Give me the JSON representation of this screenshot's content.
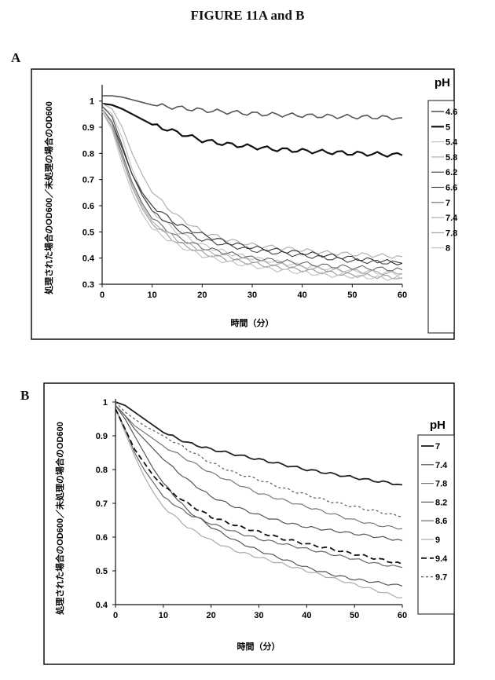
{
  "figure_title": "FIGURE 11A and B",
  "chart_data": [
    {
      "panel": "A",
      "type": "line",
      "xlabel": "時間（分）",
      "ylabel": "処理された場合のOD600／未処理の場合のOD600",
      "xlim": [
        0,
        60
      ],
      "ylim": [
        0.3,
        1.05
      ],
      "xticks": [
        "0",
        "10",
        "20",
        "30",
        "40",
        "50",
        "60"
      ],
      "yticks": [
        "0.3",
        "0.4",
        "0.5",
        "0.6",
        "0.7",
        "0.8",
        "0.9",
        "1"
      ],
      "legend_title": "pH",
      "legend_position": "right",
      "grid": false,
      "x": [
        0,
        2,
        4,
        6,
        8,
        10,
        15,
        20,
        25,
        30,
        35,
        40,
        45,
        50,
        55,
        60
      ],
      "series": [
        {
          "name": "4.6",
          "color": "#555555",
          "width": 1.6,
          "dash": "",
          "values": [
            1.02,
            1.02,
            1.015,
            1.005,
            0.995,
            0.985,
            0.975,
            0.965,
            0.958,
            0.952,
            0.948,
            0.945,
            0.942,
            0.94,
            0.938,
            0.936
          ]
        },
        {
          "name": "5",
          "color": "#111111",
          "width": 2.2,
          "dash": "",
          "values": [
            0.99,
            0.985,
            0.97,
            0.95,
            0.93,
            0.91,
            0.88,
            0.85,
            0.835,
            0.825,
            0.815,
            0.81,
            0.805,
            0.8,
            0.797,
            0.793
          ]
        },
        {
          "name": "5.4",
          "color": "#c4c4c4",
          "width": 1.2,
          "dash": "",
          "values": [
            0.98,
            0.95,
            0.86,
            0.74,
            0.65,
            0.58,
            0.5,
            0.45,
            0.42,
            0.4,
            0.385,
            0.37,
            0.36,
            0.35,
            0.345,
            0.34
          ]
        },
        {
          "name": "5.8",
          "color": "#b0b0b0",
          "width": 1.2,
          "dash": "",
          "values": [
            0.99,
            0.97,
            0.9,
            0.8,
            0.72,
            0.65,
            0.56,
            0.5,
            0.47,
            0.45,
            0.44,
            0.43,
            0.42,
            0.415,
            0.41,
            0.405
          ]
        },
        {
          "name": "6.2",
          "color": "#404040",
          "width": 1.1,
          "dash": "",
          "values": [
            0.98,
            0.94,
            0.83,
            0.72,
            0.64,
            0.58,
            0.51,
            0.47,
            0.45,
            0.43,
            0.42,
            0.41,
            0.4,
            0.39,
            0.385,
            0.38
          ]
        },
        {
          "name": "6.6",
          "color": "#303030",
          "width": 1.1,
          "dash": "",
          "values": [
            0.97,
            0.92,
            0.82,
            0.72,
            0.65,
            0.6,
            0.53,
            0.49,
            0.46,
            0.44,
            0.43,
            0.42,
            0.41,
            0.4,
            0.39,
            0.38
          ]
        },
        {
          "name": "7",
          "color": "#666666",
          "width": 1.1,
          "dash": "",
          "values": [
            0.97,
            0.92,
            0.8,
            0.69,
            0.61,
            0.55,
            0.48,
            0.44,
            0.42,
            0.4,
            0.39,
            0.38,
            0.37,
            0.365,
            0.36,
            0.355
          ]
        },
        {
          "name": "7.4",
          "color": "#a8a8a8",
          "width": 1.1,
          "dash": "",
          "values": [
            0.97,
            0.91,
            0.79,
            0.68,
            0.6,
            0.54,
            0.47,
            0.43,
            0.405,
            0.39,
            0.375,
            0.365,
            0.355,
            0.35,
            0.345,
            0.34
          ]
        },
        {
          "name": "7.8",
          "color": "#999999",
          "width": 1.1,
          "dash": "",
          "values": [
            0.96,
            0.9,
            0.78,
            0.67,
            0.59,
            0.53,
            0.46,
            0.42,
            0.395,
            0.38,
            0.365,
            0.355,
            0.345,
            0.335,
            0.33,
            0.325
          ]
        },
        {
          "name": "8",
          "color": "#bdbdbd",
          "width": 1.1,
          "dash": "",
          "values": [
            0.96,
            0.89,
            0.76,
            0.65,
            0.57,
            0.51,
            0.45,
            0.41,
            0.385,
            0.37,
            0.355,
            0.345,
            0.335,
            0.33,
            0.325,
            0.32
          ]
        }
      ]
    },
    {
      "panel": "B",
      "type": "line",
      "xlabel": "時間（分）",
      "ylabel": "処理された場合のOD600／未処理の場合のOD600",
      "xlim": [
        0,
        60
      ],
      "ylim": [
        0.4,
        1.0
      ],
      "xticks": [
        "0",
        "10",
        "20",
        "30",
        "40",
        "50",
        "60"
      ],
      "yticks": [
        "0.4",
        "0.5",
        "0.6",
        "0.7",
        "0.8",
        "0.9",
        "1"
      ],
      "legend_title": "pH",
      "legend_position": "right",
      "grid": false,
      "x": [
        0,
        2,
        4,
        6,
        8,
        10,
        15,
        20,
        25,
        30,
        35,
        40,
        45,
        50,
        55,
        60
      ],
      "series": [
        {
          "name": "7",
          "color": "#222222",
          "width": 1.8,
          "dash": "",
          "values": [
            1.0,
            0.99,
            0.97,
            0.95,
            0.93,
            0.91,
            0.88,
            0.86,
            0.845,
            0.83,
            0.815,
            0.8,
            0.788,
            0.776,
            0.765,
            0.755
          ]
        },
        {
          "name": "7.4",
          "color": "#555555",
          "width": 1.2,
          "dash": "",
          "values": [
            0.99,
            0.95,
            0.9,
            0.85,
            0.8,
            0.76,
            0.68,
            0.63,
            0.59,
            0.56,
            0.535,
            0.51,
            0.49,
            0.475,
            0.465,
            0.455
          ]
        },
        {
          "name": "7.8",
          "color": "#777777",
          "width": 1.2,
          "dash": "",
          "values": [
            0.99,
            0.96,
            0.93,
            0.91,
            0.89,
            0.87,
            0.83,
            0.79,
            0.76,
            0.73,
            0.71,
            0.69,
            0.67,
            0.65,
            0.635,
            0.625
          ]
        },
        {
          "name": "8.2",
          "color": "#555555",
          "width": 1.2,
          "dash": "",
          "values": [
            0.99,
            0.96,
            0.92,
            0.89,
            0.86,
            0.83,
            0.77,
            0.72,
            0.69,
            0.665,
            0.645,
            0.63,
            0.62,
            0.61,
            0.6,
            0.59
          ]
        },
        {
          "name": "8.6",
          "color": "#666666",
          "width": 1.2,
          "dash": "",
          "values": [
            0.98,
            0.92,
            0.85,
            0.8,
            0.76,
            0.72,
            0.67,
            0.64,
            0.615,
            0.595,
            0.58,
            0.565,
            0.55,
            0.535,
            0.52,
            0.51
          ]
        },
        {
          "name": "9",
          "color": "#aaaaaa",
          "width": 1.2,
          "dash": "",
          "values": [
            0.98,
            0.91,
            0.84,
            0.78,
            0.73,
            0.69,
            0.63,
            0.59,
            0.56,
            0.54,
            0.52,
            0.5,
            0.48,
            0.46,
            0.44,
            0.42
          ]
        },
        {
          "name": "9.4",
          "color": "#111111",
          "width": 1.8,
          "dash": "7,4",
          "values": [
            0.98,
            0.92,
            0.86,
            0.82,
            0.78,
            0.75,
            0.7,
            0.66,
            0.635,
            0.615,
            0.595,
            0.58,
            0.565,
            0.55,
            0.535,
            0.52
          ]
        },
        {
          "name": "9.7",
          "color": "#555555",
          "width": 1.2,
          "dash": "3,3",
          "values": [
            1.0,
            0.97,
            0.95,
            0.93,
            0.915,
            0.9,
            0.86,
            0.82,
            0.79,
            0.77,
            0.745,
            0.725,
            0.705,
            0.69,
            0.675,
            0.66
          ]
        }
      ]
    }
  ]
}
